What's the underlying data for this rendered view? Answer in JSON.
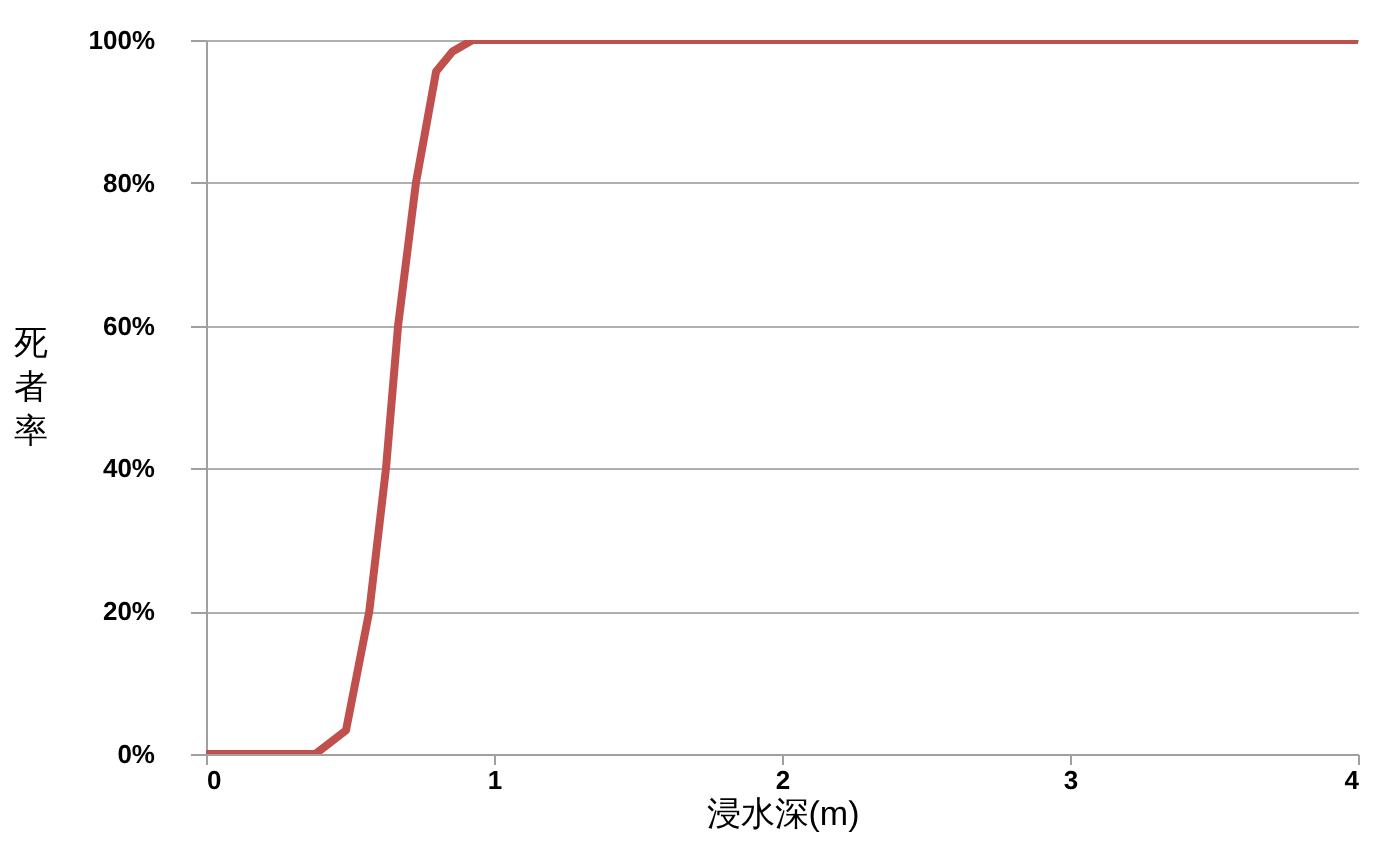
{
  "chart_data": {
    "type": "line",
    "xlabel": "浸水深(m)",
    "ylabel": "死者率",
    "x": [
      0,
      0.38,
      0.486,
      0.567,
      0.625,
      0.667,
      0.729,
      0.799,
      0.856,
      0.926,
      4
    ],
    "series": [
      {
        "color": "#c0504d",
        "values": [
          0,
          0,
          3.3,
          20,
          40,
          60,
          80,
          95.6,
          98.4,
          100,
          100
        ]
      }
    ],
    "xlim": [
      0,
      4
    ],
    "xticks": [
      0,
      1,
      2,
      3,
      4
    ],
    "ylim": [
      0,
      100
    ],
    "yticks": [
      {
        "value": 0,
        "label": "0%"
      },
      {
        "value": 20,
        "label": "20%"
      },
      {
        "value": 40,
        "label": "40%"
      },
      {
        "value": 60,
        "label": "60%"
      },
      {
        "value": 80,
        "label": "80%"
      },
      {
        "value": 100,
        "label": "100%"
      }
    ],
    "grid": "y",
    "marker": "none",
    "line_style": "solid"
  }
}
